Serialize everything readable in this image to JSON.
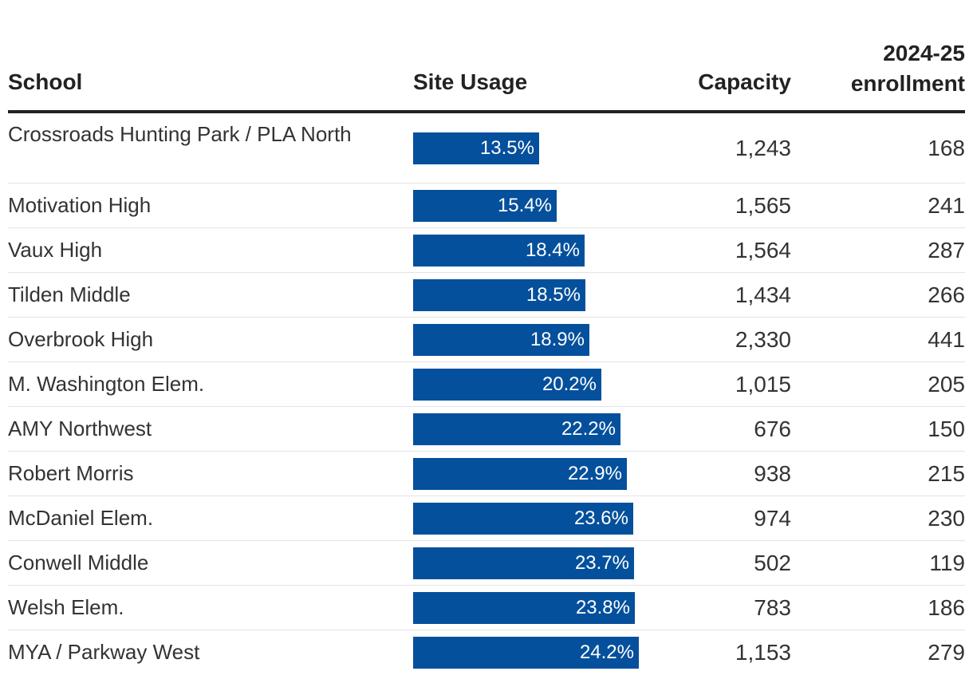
{
  "headers": {
    "school": "School",
    "usage": "Site Usage",
    "capacity": "Capacity",
    "enrollment_line1": "2024-25",
    "enrollment_line2": "enrollment"
  },
  "colors": {
    "bar": "#05509c"
  },
  "chart_data": {
    "type": "table",
    "title": "",
    "columns": [
      "School",
      "Site Usage",
      "Capacity",
      "2024-25 enrollment"
    ],
    "usage_max": 100,
    "rows": [
      {
        "school": "Crossroads Hunting Park / PLA North",
        "usage": 13.5,
        "usage_label": "13.5%",
        "capacity": "1,243",
        "enrollment": "168"
      },
      {
        "school": "Motivation High",
        "usage": 15.4,
        "usage_label": "15.4%",
        "capacity": "1,565",
        "enrollment": "241"
      },
      {
        "school": "Vaux High",
        "usage": 18.4,
        "usage_label": "18.4%",
        "capacity": "1,564",
        "enrollment": "287"
      },
      {
        "school": "Tilden Middle",
        "usage": 18.5,
        "usage_label": "18.5%",
        "capacity": "1,434",
        "enrollment": "266"
      },
      {
        "school": "Overbrook High",
        "usage": 18.9,
        "usage_label": "18.9%",
        "capacity": "2,330",
        "enrollment": "441"
      },
      {
        "school": "M. Washington Elem.",
        "usage": 20.2,
        "usage_label": "20.2%",
        "capacity": "1,015",
        "enrollment": "205"
      },
      {
        "school": "AMY Northwest",
        "usage": 22.2,
        "usage_label": "22.2%",
        "capacity": "676",
        "enrollment": "150"
      },
      {
        "school": "Robert Morris",
        "usage": 22.9,
        "usage_label": "22.9%",
        "capacity": "938",
        "enrollment": "215"
      },
      {
        "school": "McDaniel Elem.",
        "usage": 23.6,
        "usage_label": "23.6%",
        "capacity": "974",
        "enrollment": "230"
      },
      {
        "school": "Conwell Middle",
        "usage": 23.7,
        "usage_label": "23.7%",
        "capacity": "502",
        "enrollment": "119"
      },
      {
        "school": "Welsh Elem.",
        "usage": 23.8,
        "usage_label": "23.8%",
        "capacity": "783",
        "enrollment": "186"
      },
      {
        "school": "MYA / Parkway West",
        "usage": 24.2,
        "usage_label": "24.2%",
        "capacity": "1,153",
        "enrollment": "279"
      }
    ]
  }
}
